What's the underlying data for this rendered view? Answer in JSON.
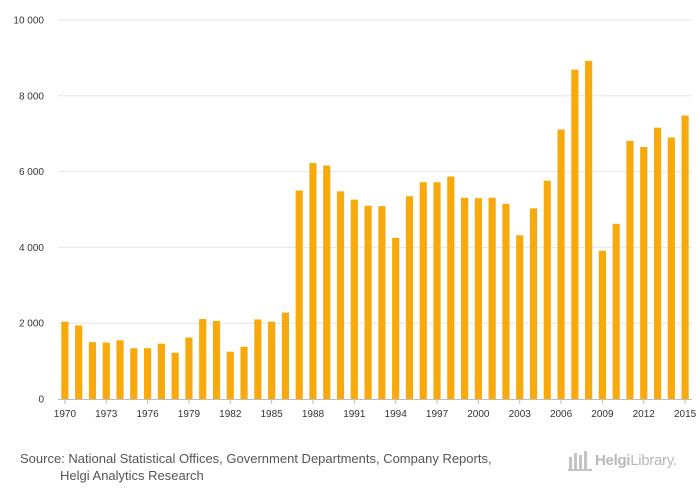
{
  "chart_data": {
    "type": "bar",
    "title": "",
    "xlabel": "",
    "ylabel": "",
    "ylim": [
      0,
      10000
    ],
    "yticks": [
      0,
      2000,
      4000,
      6000,
      8000,
      10000
    ],
    "ytick_labels": [
      "0",
      "2 000",
      "4 000",
      "6 000",
      "8 000",
      "10 000"
    ],
    "grid": true,
    "bar_color": "#f8aa0c",
    "categories": [
      "1970",
      "1971",
      "1972",
      "1973",
      "1974",
      "1975",
      "1976",
      "1977",
      "1978",
      "1979",
      "1980",
      "1981",
      "1982",
      "1983",
      "1984",
      "1985",
      "1986",
      "1987",
      "1988",
      "1989",
      "1990",
      "1991",
      "1992",
      "1993",
      "1994",
      "1995",
      "1996",
      "1997",
      "1998",
      "1999",
      "2000",
      "2001",
      "2002",
      "2003",
      "2004",
      "2005",
      "2006",
      "2007",
      "2008",
      "2009",
      "2010",
      "2011",
      "2012",
      "2013",
      "2014",
      "2015"
    ],
    "xtick_labels": [
      "1970",
      "1973",
      "1976",
      "1979",
      "1982",
      "1985",
      "1988",
      "1991",
      "1994",
      "1997",
      "2000",
      "2003",
      "2006",
      "2009",
      "2012",
      "2015"
    ],
    "values": [
      2040,
      1940,
      1500,
      1490,
      1550,
      1340,
      1340,
      1460,
      1220,
      1620,
      2110,
      2060,
      1250,
      1380,
      2100,
      2040,
      2280,
      5500,
      6230,
      6160,
      5480,
      5260,
      5100,
      5090,
      4250,
      5350,
      5720,
      5720,
      5870,
      5310,
      5300,
      5310,
      5150,
      4320,
      5030,
      5760,
      7110,
      8690,
      8920,
      3910,
      4620,
      6810,
      6650,
      7160,
      6900,
      7480
    ]
  },
  "footer": {
    "source_line1": "Source: National Statistical Offices, Government Departments, Company Reports,",
    "source_line2": "Helgi Analytics Research",
    "logo_part1": "Helgi",
    "logo_part2": "Library."
  }
}
